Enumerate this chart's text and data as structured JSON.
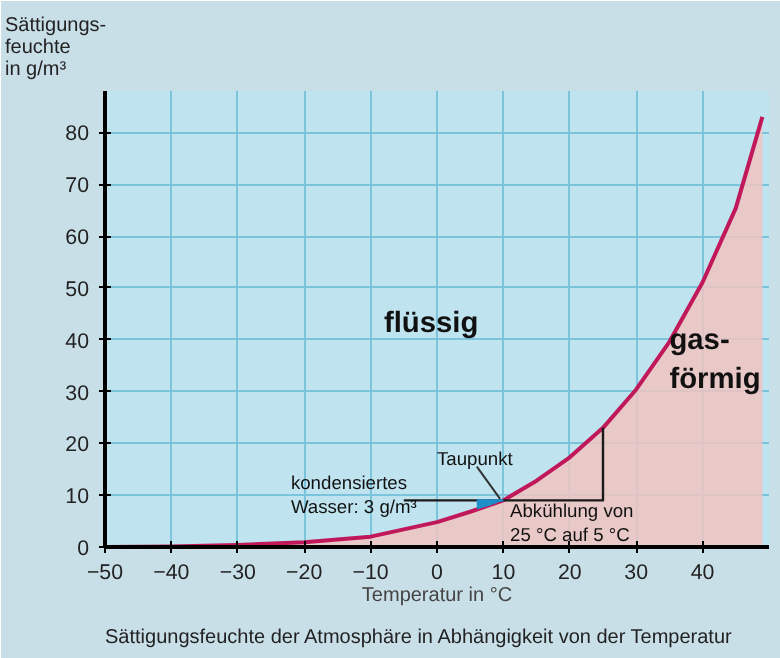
{
  "chart_data": {
    "type": "line",
    "xlabel": "Temperatur in °C",
    "ylabel": "Sättigungs-\nfeuchte\nin g/m³",
    "xlim": [
      -50,
      50
    ],
    "ylim": [
      0,
      88
    ],
    "xticks": [
      -50,
      -40,
      -30,
      -20,
      -10,
      0,
      10,
      20,
      30,
      40
    ],
    "yticks": [
      0,
      10,
      20,
      30,
      40,
      50,
      60,
      70,
      80
    ],
    "grid": true,
    "series": [
      {
        "color": "#c0185a",
        "x": [
          -50,
          -40,
          -30,
          -20,
          -10,
          0,
          5,
          10,
          15,
          20,
          25,
          30,
          35,
          40,
          45,
          49
        ],
        "values": [
          0,
          0.1,
          0.4,
          0.9,
          2,
          4.8,
          6.8,
          9,
          12.8,
          17.3,
          23,
          30.4,
          39.6,
          51.1,
          65.4,
          83
        ]
      },
      {
        "type": "line",
        "color": "#1a1a1a",
        "x": [
          -5,
          25,
          25
        ],
        "values": [
          9,
          9,
          23
        ]
      },
      {
        "type": "line",
        "color": "#1e8fc8",
        "x": [
          6,
          7,
          8,
          9,
          10
        ],
        "values": [
          9,
          9,
          9,
          9,
          9
        ],
        "lower": [
          7.3,
          7.6,
          8,
          8.5,
          9
        ],
        "upper": [
          9,
          9,
          9,
          9,
          9
        ]
      }
    ],
    "annotations": [
      "flüssig",
      "gas-\nförmig",
      "Taupunkt",
      "kondensiertes\nWasser: 3 g/m³",
      "Abkühlung von\n25 °C auf 5 °C",
      "Sättigungsfeuchte der Atmosphäre in Abhängigkeit von der Temperatur"
    ]
  }
}
